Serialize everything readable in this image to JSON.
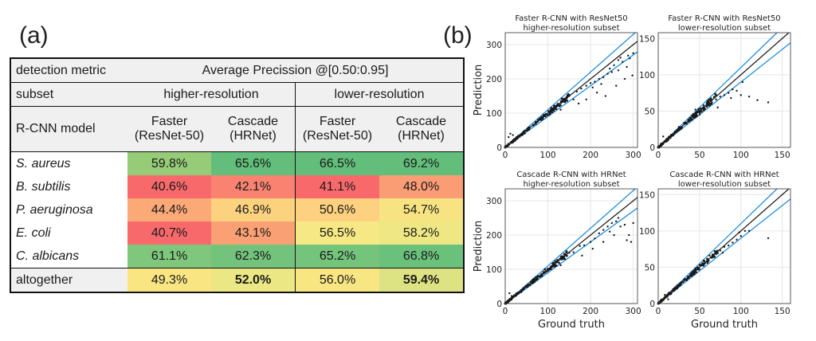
{
  "panel_labels": {
    "a": "(a)",
    "b": "(b)"
  },
  "table": {
    "metric_label": "detection metric",
    "metric_value": "Average Precission  @[0.50:0.95]",
    "subset_label": "subset",
    "subsets": [
      "higher-resolution",
      "lower-resolution"
    ],
    "model_label": "R-CNN model",
    "models": [
      {
        "name": "Faster",
        "backbone": "(ResNet-50)"
      },
      {
        "name": "Cascade",
        "backbone": "(HRNet)"
      },
      {
        "name": "Faster",
        "backbone": "(ResNet-50)"
      },
      {
        "name": "Cascade",
        "backbone": "(HRNet)"
      }
    ],
    "rows": [
      {
        "label": "S. aureus",
        "values": [
          "59.8%",
          "65.6%",
          "66.5%",
          "69.2%"
        ],
        "colors": [
          "#96cc78",
          "#63be7b",
          "#63be7b",
          "#63be7b"
        ]
      },
      {
        "label": "B. subtilis",
        "values": [
          "40.6%",
          "42.1%",
          "41.1%",
          "48.0%"
        ],
        "colors": [
          "#f8696b",
          "#f98370",
          "#f8696b",
          "#fa9d75"
        ]
      },
      {
        "label": "P. aeruginosa",
        "values": [
          "44.4%",
          "46.9%",
          "50.6%",
          "54.7%"
        ],
        "colors": [
          "#fbaa77",
          "#fdd27f",
          "#fdd17f",
          "#f8e383"
        ]
      },
      {
        "label": "E. coli",
        "values": [
          "40.7%",
          "43.1%",
          "56.5%",
          "58.2%"
        ],
        "colors": [
          "#f8696b",
          "#faa075",
          "#f6e884",
          "#efe784"
        ]
      },
      {
        "label": "C. albicans",
        "values": [
          "61.1%",
          "62.3%",
          "65.2%",
          "66.8%"
        ],
        "colors": [
          "#7fc77c",
          "#73c37c",
          "#74c47c",
          "#6ac17b"
        ]
      }
    ],
    "total": {
      "label": "altogether",
      "values": [
        "49.3%",
        "52.0%",
        "56.0%",
        "59.4%"
      ],
      "bold": [
        false,
        true,
        false,
        true
      ],
      "colors": [
        "#f9e683",
        "#eae784",
        "#f8e683",
        "#dde283"
      ]
    }
  },
  "chart_data": [
    {
      "type": "scatter",
      "title": "Faster R-CNN with ResNet50",
      "subtitle": "higher-resolution subset",
      "xlabel": "",
      "ylabel": "Prediction",
      "xlim": [
        0,
        310
      ],
      "ylim": [
        0,
        335
      ],
      "xticks": [
        0,
        100,
        200,
        300
      ],
      "yticks": [
        0,
        100,
        200,
        300
      ],
      "reference_lines": {
        "identity_slope": 1.0,
        "band_slopes": [
          1.1,
          0.9
        ],
        "identity_color": "#222222",
        "band_color": "#1f8fe0"
      },
      "outliers": [
        [
          150,
          150
        ],
        [
          168,
          163
        ],
        [
          178,
          172
        ],
        [
          190,
          180
        ],
        [
          200,
          188
        ],
        [
          210,
          192
        ],
        [
          220,
          200
        ],
        [
          230,
          205
        ],
        [
          240,
          215
        ],
        [
          250,
          220
        ],
        [
          215,
          160
        ],
        [
          225,
          185
        ],
        [
          235,
          150
        ],
        [
          245,
          230
        ],
        [
          255,
          240
        ],
        [
          260,
          180
        ],
        [
          265,
          225
        ],
        [
          275,
          250
        ],
        [
          285,
          235
        ],
        [
          292,
          260
        ],
        [
          298,
          210
        ],
        [
          280,
          200
        ],
        [
          205,
          175
        ],
        [
          190,
          140
        ],
        [
          172,
          128
        ],
        [
          160,
          140
        ],
        [
          130,
          110
        ],
        [
          120,
          112
        ],
        [
          140,
          132
        ],
        [
          110,
          102
        ],
        [
          95,
          90
        ],
        [
          85,
          80
        ],
        [
          265,
          255
        ],
        [
          288,
          268
        ],
        [
          300,
          275
        ],
        [
          270,
          262
        ],
        [
          12,
          40
        ],
        [
          18,
          36
        ],
        [
          8,
          30
        ]
      ],
      "cluster": {
        "x_max": 150,
        "count": 150,
        "relative_spread": 0.06
      }
    },
    {
      "type": "scatter",
      "title": "Faster R-CNN with ResNet50",
      "subtitle": "lower-resolution subset",
      "xlabel": "",
      "ylabel": "",
      "xlim": [
        0,
        160
      ],
      "ylim": [
        0,
        158
      ],
      "xticks": [
        0,
        50,
        100,
        150
      ],
      "yticks": [
        0,
        50,
        100,
        150
      ],
      "reference_lines": {
        "identity_slope": 1.0,
        "band_slopes": [
          1.1,
          0.9
        ],
        "identity_color": "#222222",
        "band_color": "#1f8fe0"
      },
      "outliers": [
        [
          60,
          60
        ],
        [
          65,
          62
        ],
        [
          70,
          66
        ],
        [
          75,
          70
        ],
        [
          80,
          72
        ],
        [
          85,
          75
        ],
        [
          90,
          80
        ],
        [
          95,
          78
        ],
        [
          100,
          72
        ],
        [
          110,
          70
        ],
        [
          120,
          65
        ],
        [
          133,
          62
        ],
        [
          102,
          90
        ],
        [
          72,
          55
        ],
        [
          55,
          58
        ],
        [
          50,
          45
        ],
        [
          45,
          52
        ],
        [
          6,
          15
        ],
        [
          10,
          8
        ],
        [
          88,
          68
        ]
      ],
      "cluster": {
        "x_max": 70,
        "count": 140,
        "relative_spread": 0.07
      }
    },
    {
      "type": "scatter",
      "title": "Cascade R-CNN with HRNet",
      "subtitle": "higher-resolution subset",
      "xlabel": "Ground truth",
      "ylabel": "Prediction",
      "xlim": [
        0,
        310
      ],
      "ylim": [
        0,
        335
      ],
      "xticks": [
        0,
        100,
        200,
        300
      ],
      "yticks": [
        0,
        100,
        200,
        300
      ],
      "reference_lines": {
        "identity_slope": 1.0,
        "band_slopes": [
          1.1,
          0.9
        ],
        "identity_color": "#222222",
        "band_color": "#1f8fe0"
      },
      "outliers": [
        [
          150,
          148
        ],
        [
          160,
          150
        ],
        [
          175,
          168
        ],
        [
          185,
          170
        ],
        [
          200,
          180
        ],
        [
          210,
          190
        ],
        [
          220,
          205
        ],
        [
          230,
          215
        ],
        [
          240,
          225
        ],
        [
          250,
          235
        ],
        [
          260,
          240
        ],
        [
          270,
          225
        ],
        [
          280,
          230
        ],
        [
          290,
          200
        ],
        [
          295,
          180
        ],
        [
          285,
          185
        ],
        [
          300,
          235
        ],
        [
          265,
          250
        ],
        [
          245,
          210
        ],
        [
          230,
          180
        ],
        [
          205,
          160
        ],
        [
          180,
          140
        ],
        [
          140,
          130
        ],
        [
          130,
          112
        ],
        [
          115,
          108
        ],
        [
          100,
          95
        ],
        [
          90,
          88
        ],
        [
          10,
          30
        ],
        [
          15,
          22
        ],
        [
          255,
          200
        ]
      ],
      "cluster": {
        "x_max": 150,
        "count": 150,
        "relative_spread": 0.06
      }
    },
    {
      "type": "scatter",
      "title": "Cascade R-CNN with HRNet",
      "subtitle": "lower-resolution subset",
      "xlabel": "Ground truth",
      "ylabel": "",
      "xlim": [
        0,
        160
      ],
      "ylim": [
        0,
        158
      ],
      "xticks": [
        0,
        50,
        100,
        150
      ],
      "yticks": [
        0,
        50,
        100,
        150
      ],
      "reference_lines": {
        "identity_slope": 1.0,
        "band_slopes": [
          1.1,
          0.9
        ],
        "identity_color": "#222222",
        "band_color": "#1f8fe0"
      },
      "outliers": [
        [
          60,
          60
        ],
        [
          65,
          63
        ],
        [
          70,
          68
        ],
        [
          75,
          73
        ],
        [
          80,
          78
        ],
        [
          85,
          80
        ],
        [
          90,
          84
        ],
        [
          95,
          88
        ],
        [
          100,
          93
        ],
        [
          105,
          100
        ],
        [
          110,
          100
        ],
        [
          133,
          90
        ],
        [
          55,
          52
        ],
        [
          50,
          53
        ],
        [
          45,
          48
        ],
        [
          8,
          12
        ],
        [
          12,
          6
        ],
        [
          98,
          98
        ],
        [
          62,
          66
        ],
        [
          78,
          70
        ]
      ],
      "cluster": {
        "x_max": 72,
        "count": 140,
        "relative_spread": 0.06
      }
    }
  ]
}
